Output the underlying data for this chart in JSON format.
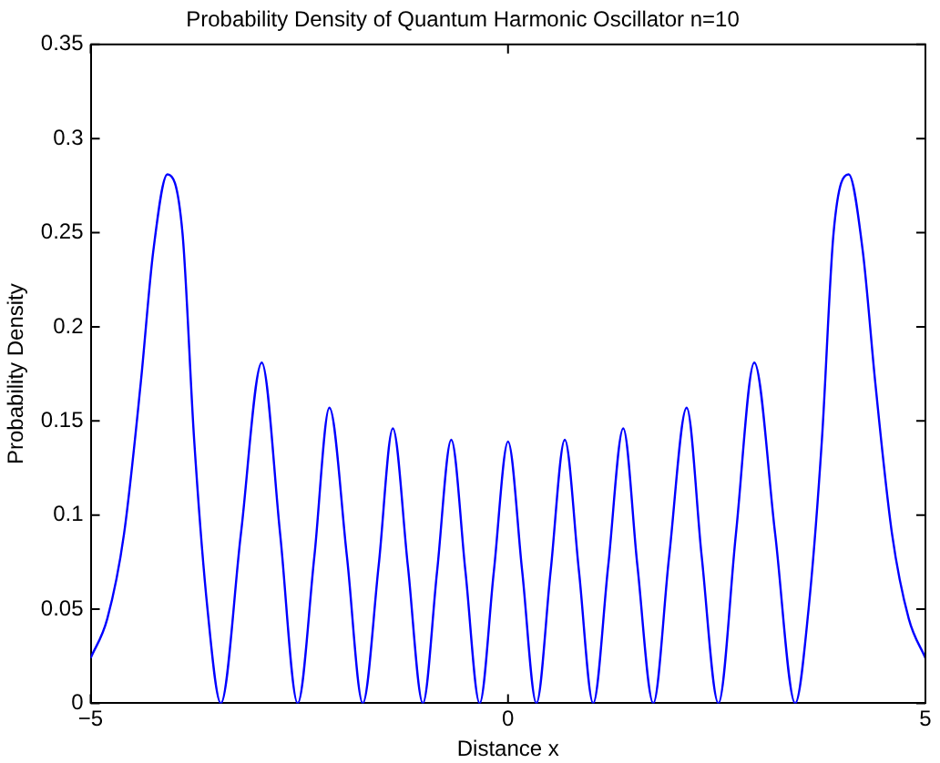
{
  "chart_data": {
    "type": "line",
    "title": "Probability Density of Quantum Harmonic Oscillator n=10",
    "xlabel": "Distance x",
    "ylabel": "Probability Density",
    "x": [
      -5,
      -4.8,
      -4.6,
      -4.4,
      -4.25,
      -4.08,
      -3.9,
      -3.76,
      -3.6,
      -3.44,
      -3.2,
      -2.95,
      -2.73,
      -2.52,
      -2.32,
      -2.14,
      -1.93,
      -1.74,
      -1.55,
      -1.38,
      -1.2,
      -1.02,
      -0.85,
      -0.68,
      -0.51,
      -0.34,
      -0.17,
      0,
      0.17,
      0.34,
      0.51,
      0.68,
      0.85,
      1.02,
      1.2,
      1.38,
      1.55,
      1.74,
      1.93,
      2.14,
      2.32,
      2.52,
      2.73,
      2.95,
      3.2,
      3.44,
      3.6,
      3.76,
      3.9,
      4.08,
      4.25,
      4.4,
      4.6,
      4.8,
      5
    ],
    "series": [
      {
        "color": "#0000ff",
        "values": [
          0.024,
          0.045,
          0.09,
          0.17,
          0.24,
          0.281,
          0.25,
          0.14,
          0.05,
          0,
          0.09,
          0.181,
          0.09,
          0,
          0.078,
          0.157,
          0.078,
          0,
          0.073,
          0.146,
          0.073,
          0,
          0.07,
          0.14,
          0.07,
          0,
          0.07,
          0.139,
          0.07,
          0,
          0.07,
          0.14,
          0.07,
          0,
          0.073,
          0.146,
          0.073,
          0,
          0.078,
          0.157,
          0.078,
          0,
          0.09,
          0.181,
          0.09,
          0,
          0.05,
          0.14,
          0.25,
          0.281,
          0.24,
          0.17,
          0.09,
          0.045,
          0.024
        ]
      }
    ],
    "xlim": [
      -5,
      5
    ],
    "xticks": [
      {
        "value": -5,
        "label": "−5"
      },
      0,
      5
    ],
    "ylim": [
      0,
      0.35
    ],
    "yticks": [
      0,
      0.05,
      0.1,
      0.15,
      0.2,
      0.25,
      0.3,
      0.35
    ],
    "grid": false,
    "legend": false,
    "marker": "none",
    "line_style": "solid"
  }
}
